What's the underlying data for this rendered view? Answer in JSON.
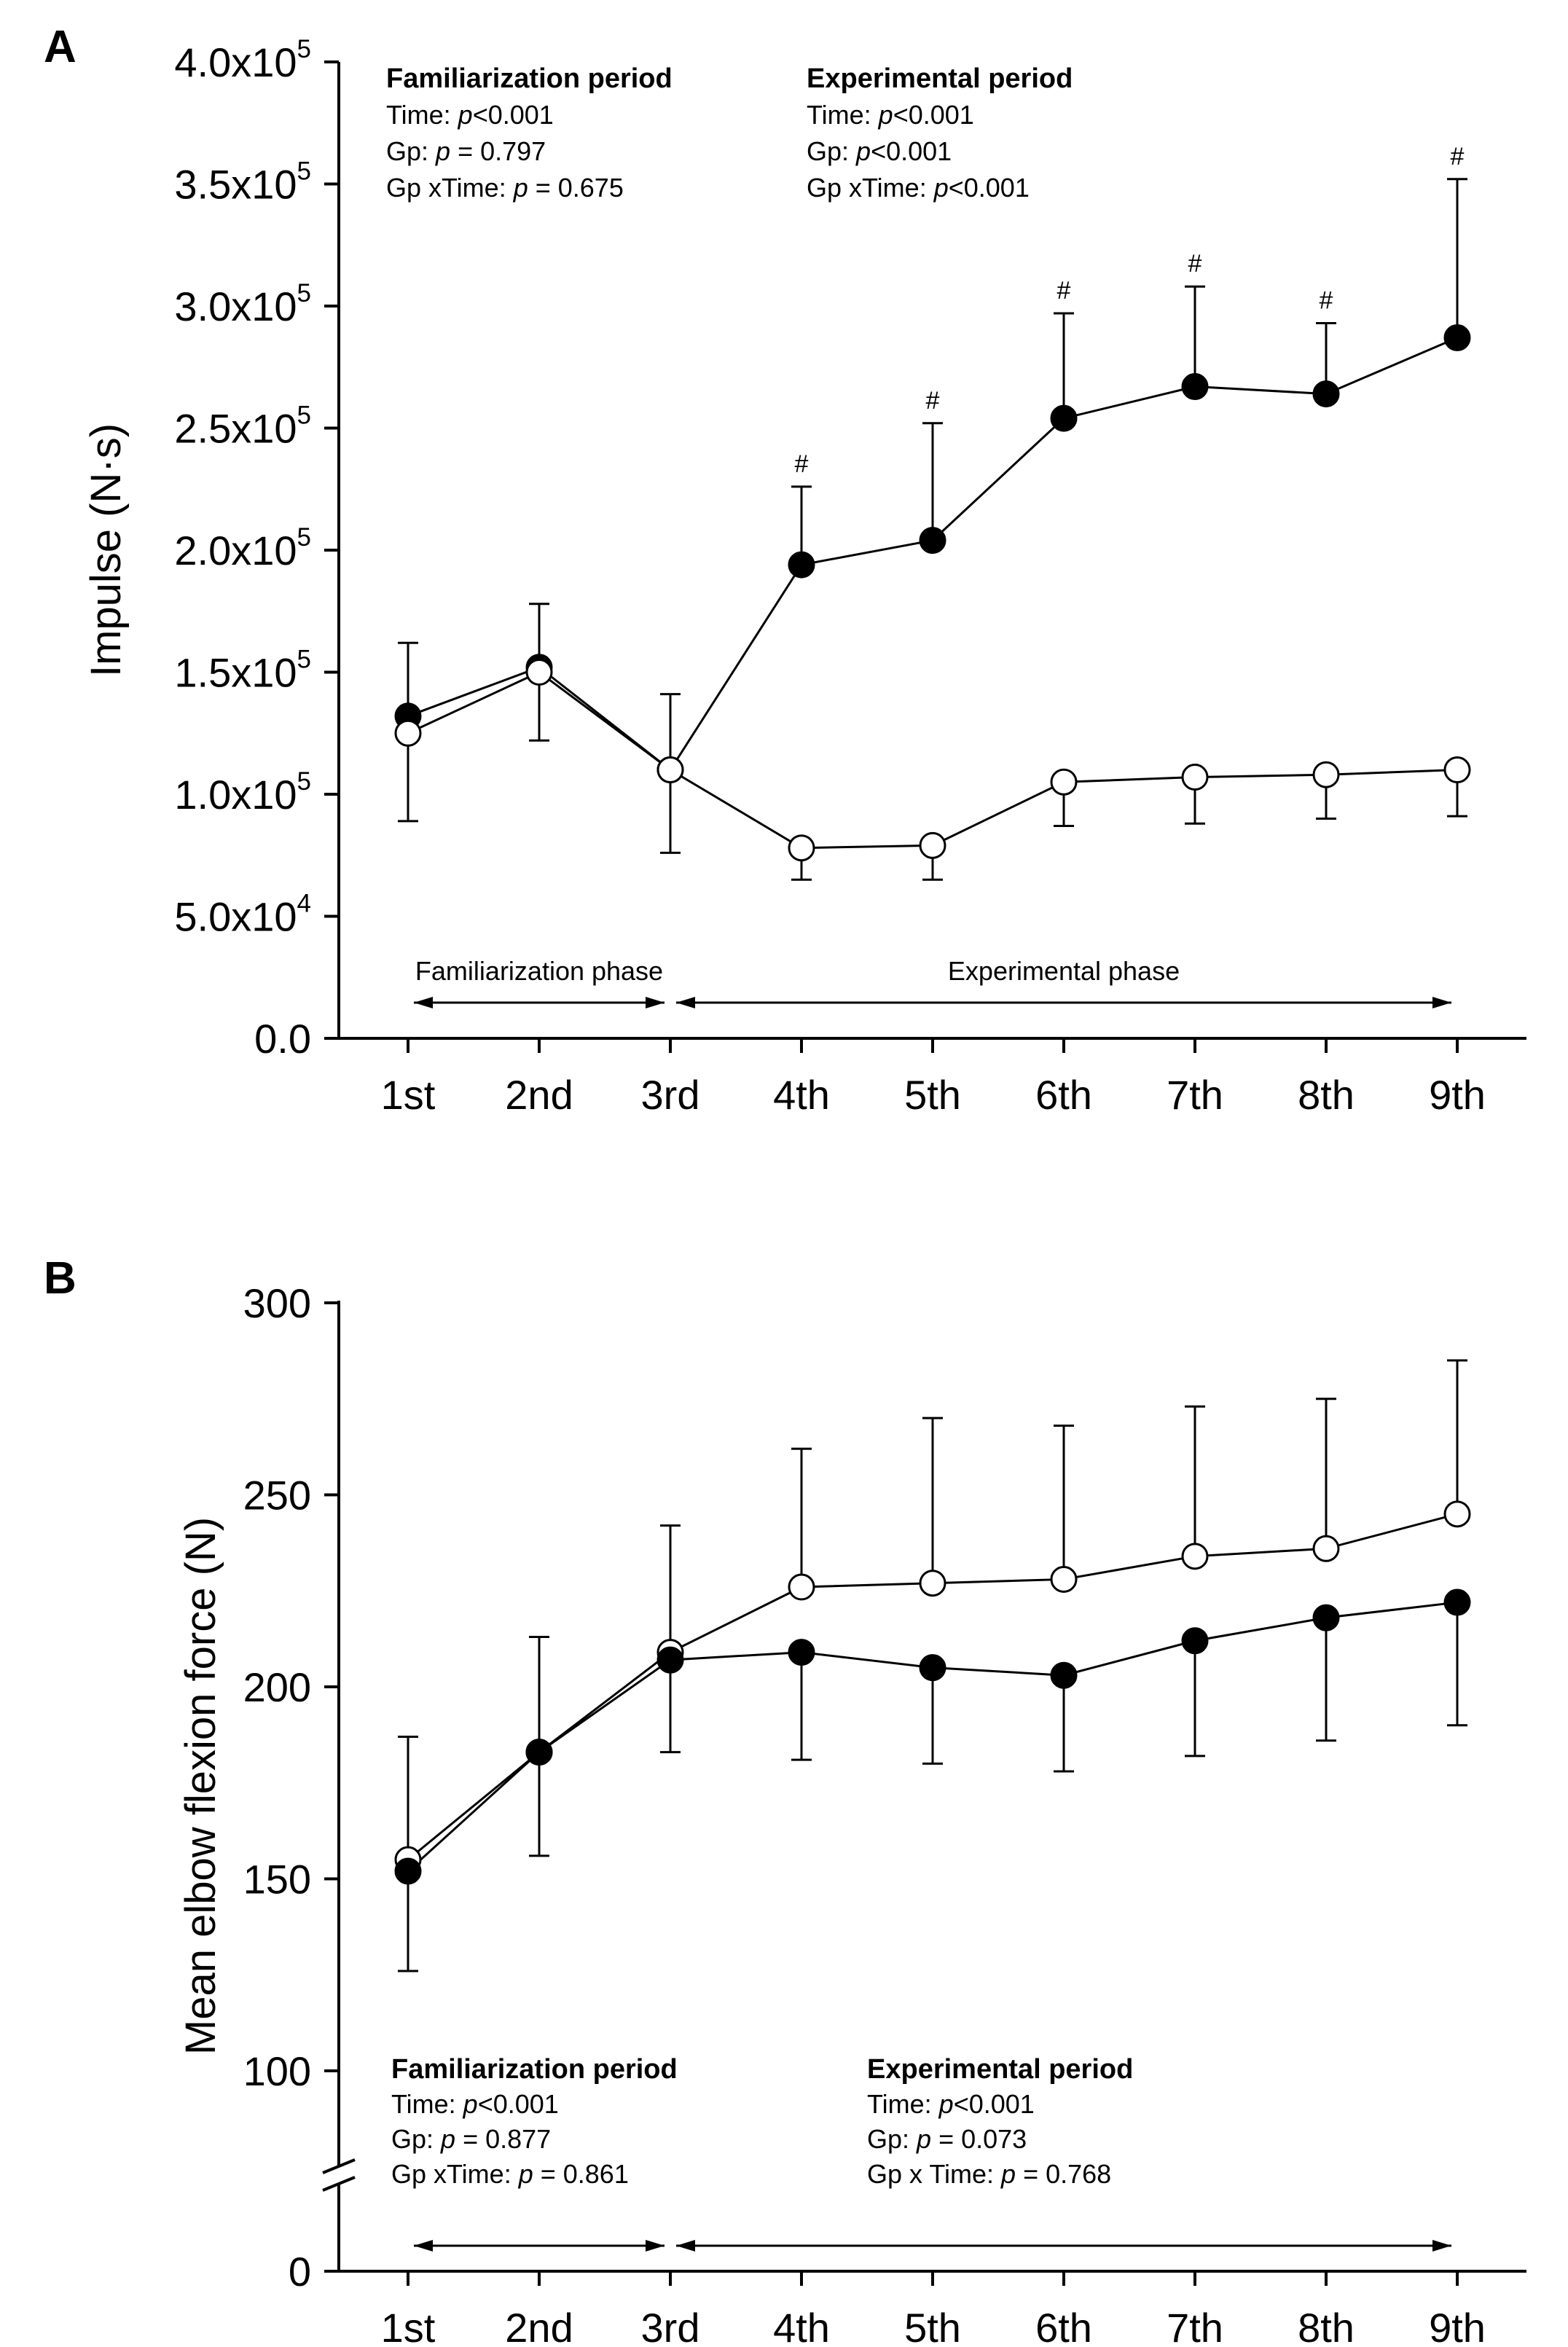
{
  "chart_data": [
    {
      "panel_label": "A",
      "type": "line",
      "ylabel": "Impulse (N·s)",
      "ylim": [
        0,
        400000
      ],
      "y_ticks": [
        {
          "label": "0.0",
          "mant": "",
          "exp": ""
        },
        {
          "label": "",
          "mant": "5.0x10",
          "exp": "4"
        },
        {
          "label": "",
          "mant": "1.0x10",
          "exp": "5"
        },
        {
          "label": "",
          "mant": "1.5x10",
          "exp": "5"
        },
        {
          "label": "",
          "mant": "2.0x10",
          "exp": "5"
        },
        {
          "label": "",
          "mant": "2.5x10",
          "exp": "5"
        },
        {
          "label": "",
          "mant": "3.0x10",
          "exp": "5"
        },
        {
          "label": "",
          "mant": "3.5x10",
          "exp": "5"
        },
        {
          "label": "",
          "mant": "4.0x10",
          "exp": "5"
        }
      ],
      "y_tick_values": [
        0,
        50000,
        100000,
        150000,
        200000,
        250000,
        300000,
        350000,
        400000
      ],
      "categories": [
        "1st",
        "2nd",
        "3rd",
        "4th",
        "5th",
        "6th",
        "7th",
        "8th",
        "9th"
      ],
      "series": [
        {
          "marker": "filled",
          "values": [
            132000,
            152000,
            110000,
            194000,
            204000,
            254000,
            267000,
            264000,
            287000
          ],
          "err_upper": [
            30000,
            26000,
            31000,
            32000,
            48000,
            43000,
            41000,
            29000,
            65000
          ],
          "err_lower": [
            0,
            0,
            0,
            0,
            0,
            0,
            0,
            0,
            0
          ],
          "significance": [
            "",
            "",
            "",
            "#",
            "#",
            "#",
            "#",
            "#",
            "#"
          ]
        },
        {
          "marker": "open",
          "values": [
            125000,
            150000,
            110000,
            78000,
            79000,
            105000,
            107000,
            108000,
            110000
          ],
          "err_upper": [
            0,
            0,
            0,
            0,
            0,
            0,
            0,
            0,
            0
          ],
          "err_lower": [
            36000,
            28000,
            34000,
            13000,
            14000,
            18000,
            19000,
            18000,
            19000
          ],
          "significance": [
            "",
            "",
            "",
            "",
            "",
            "",
            "",
            "",
            ""
          ]
        }
      ],
      "phases": [
        {
          "label": "Familiarization phase",
          "from": 0,
          "to": 2
        },
        {
          "label": "Experimental phase",
          "from": 2,
          "to": 8
        }
      ],
      "stats": [
        {
          "title": "Familiarization period",
          "lines": [
            {
              "pre": "Time: ",
              "p": "p",
              "post": "<0.001"
            },
            {
              "pre": "Gp: ",
              "p": "p",
              "post": " = 0.797"
            },
            {
              "pre": "Gp xTime: ",
              "p": "p",
              "post": " = 0.675"
            }
          ]
        },
        {
          "title": "Experimental period",
          "lines": [
            {
              "pre": "Time: ",
              "p": "p",
              "post": "<0.001"
            },
            {
              "pre": "Gp: ",
              "p": "p",
              "post": "<0.001"
            },
            {
              "pre": "Gp xTime: ",
              "p": "p",
              "post": "<0.001"
            }
          ]
        }
      ]
    },
    {
      "panel_label": "B",
      "type": "line",
      "ylabel": "Mean elbow flexion force (N)",
      "ylim": [
        0,
        300
      ],
      "axis_break": true,
      "y_ticks": [
        {
          "label": "0",
          "mant": "",
          "exp": ""
        },
        {
          "label": "100",
          "mant": "",
          "exp": ""
        },
        {
          "label": "150",
          "mant": "",
          "exp": ""
        },
        {
          "label": "200",
          "mant": "",
          "exp": ""
        },
        {
          "label": "250",
          "mant": "",
          "exp": ""
        },
        {
          "label": "300",
          "mant": "",
          "exp": ""
        }
      ],
      "y_tick_values": [
        0,
        100,
        150,
        200,
        250,
        300
      ],
      "categories": [
        "1st",
        "2nd",
        "3rd",
        "4th",
        "5th",
        "6th",
        "7th",
        "8th",
        "9th"
      ],
      "series": [
        {
          "marker": "open",
          "values": [
            155,
            183,
            209,
            226,
            227,
            228,
            234,
            236,
            245
          ],
          "err_upper": [
            32,
            30,
            33,
            36,
            43,
            40,
            39,
            39,
            40
          ],
          "err_lower": [
            0,
            0,
            0,
            0,
            0,
            0,
            0,
            0,
            0
          ],
          "significance": [
            "",
            "",
            "",
            "",
            "",
            "",
            "",
            "",
            ""
          ]
        },
        {
          "marker": "filled",
          "values": [
            152,
            183,
            207,
            209,
            205,
            203,
            212,
            218,
            222
          ],
          "err_upper": [
            0,
            0,
            0,
            0,
            0,
            0,
            0,
            0,
            0
          ],
          "err_lower": [
            26,
            27,
            24,
            28,
            25,
            25,
            30,
            32,
            32
          ],
          "significance": [
            "",
            "",
            "",
            "",
            "",
            "",
            "",
            "",
            ""
          ]
        }
      ],
      "phases": [
        {
          "label": "",
          "from": 0,
          "to": 2
        },
        {
          "label": "",
          "from": 2,
          "to": 8
        }
      ],
      "stats": [
        {
          "title": "Familiarization period",
          "lines": [
            {
              "pre": "Time: ",
              "p": "p",
              "post": "<0.001"
            },
            {
              "pre": "Gp: ",
              "p": "p",
              "post": " = 0.877"
            },
            {
              "pre": "Gp xTime: ",
              "p": "p",
              "post": " = 0.861"
            }
          ]
        },
        {
          "title": "Experimental period",
          "lines": [
            {
              "pre": "Time: ",
              "p": "p",
              "post": "<0.001"
            },
            {
              "pre": "Gp: ",
              "p": "p",
              "post": " = 0.073"
            },
            {
              "pre": "Gp x Time: ",
              "p": "p",
              "post": " = 0.768"
            }
          ]
        }
      ]
    }
  ]
}
